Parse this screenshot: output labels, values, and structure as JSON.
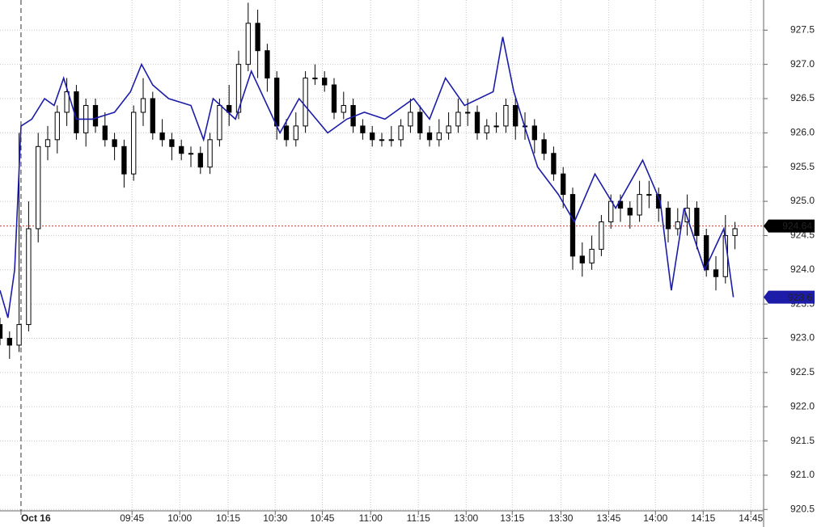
{
  "chart_data": {
    "type": "candlestick",
    "xlim": [
      0,
      240
    ],
    "ylim": [
      920.48,
      927.94
    ],
    "xticks": [
      {
        "value": 6.6,
        "label": "Oct 16"
      },
      {
        "value": 41.5,
        "label": "09:45"
      },
      {
        "value": 56.5,
        "label": "10:00"
      },
      {
        "value": 71.7,
        "label": "10:15"
      },
      {
        "value": 86.5,
        "label": "10:30"
      },
      {
        "value": 101.3,
        "label": "10:45"
      },
      {
        "value": 116.5,
        "label": "11:00"
      },
      {
        "value": 131.5,
        "label": "11:15"
      },
      {
        "value": 146.5,
        "label": "13:00"
      },
      {
        "value": 161,
        "label": "13:15"
      },
      {
        "value": 176.3,
        "label": "13:30"
      },
      {
        "value": 191.3,
        "label": "13:45"
      },
      {
        "value": 206,
        "label": "14:00"
      },
      {
        "value": 221,
        "label": "14:15"
      },
      {
        "value": 236,
        "label": "14:45"
      }
    ],
    "yticks": [
      {
        "value": 920.5,
        "label": "920.5"
      },
      {
        "value": 921,
        "label": "921.0"
      },
      {
        "value": 921.5,
        "label": "921.5"
      },
      {
        "value": 922,
        "label": "922.0"
      },
      {
        "value": 922.5,
        "label": "922.5"
      },
      {
        "value": 923,
        "label": "923.0"
      },
      {
        "value": 923.5,
        "label": "923.5"
      },
      {
        "value": 924,
        "label": "924.0"
      },
      {
        "value": 924.5,
        "label": "924.5"
      },
      {
        "value": 925,
        "label": "925.0"
      },
      {
        "value": 925.5,
        "label": "925.5"
      },
      {
        "value": 926,
        "label": "926.0"
      },
      {
        "value": 926.5,
        "label": "926.5"
      },
      {
        "value": 927,
        "label": "927.0"
      },
      {
        "value": 927.5,
        "label": "927.5"
      }
    ],
    "grid": true,
    "last_candle_price": 924.64,
    "last_line_price": 923.6,
    "series": [
      {
        "type": "candlestick",
        "color": "#000000",
        "x": [
          0,
          3,
          6,
          9,
          12,
          15,
          18,
          21,
          24,
          27,
          30,
          33,
          36,
          39,
          42,
          45,
          48,
          51,
          54,
          57,
          60,
          63,
          66,
          69,
          72,
          75,
          78,
          81,
          84,
          87,
          90,
          93,
          96,
          99,
          102,
          105,
          108,
          111,
          114,
          117,
          120,
          123,
          126,
          129,
          132,
          135,
          138,
          141,
          144,
          147,
          150,
          153,
          156,
          159,
          162,
          165,
          168,
          171,
          174,
          177,
          180,
          183,
          186,
          189,
          192,
          195,
          198,
          201,
          204,
          207,
          210,
          213,
          216,
          219,
          222,
          225,
          228,
          231
        ],
        "open": [
          923.2,
          923.0,
          922.9,
          923.2,
          924.6,
          925.8,
          925.9,
          926.3,
          926.6,
          926.0,
          926.4,
          926.1,
          925.9,
          925.8,
          925.4,
          926.3,
          926.5,
          926.0,
          925.9,
          925.8,
          925.7,
          925.7,
          925.5,
          925.9,
          926.4,
          926.3,
          927.0,
          927.6,
          927.2,
          926.8,
          926.1,
          925.9,
          926.1,
          926.8,
          926.8,
          926.7,
          926.3,
          926.4,
          926.1,
          926.0,
          925.9,
          925.9,
          925.9,
          926.1,
          926.3,
          926.0,
          925.9,
          926.0,
          926.1,
          926.3,
          926.3,
          926.0,
          926.1,
          926.1,
          926.4,
          926.1,
          926.1,
          925.9,
          925.7,
          925.4,
          925.1,
          924.2,
          924.1,
          924.3,
          924.7,
          925.0,
          924.9,
          924.8,
          925.1,
          925.1,
          924.9,
          924.6,
          924.7,
          924.9,
          924.5,
          924.0,
          923.9,
          924.5
        ],
        "high": [
          923.3,
          923.1,
          926.0,
          925.0,
          926.0,
          926.1,
          926.4,
          926.8,
          926.7,
          926.5,
          926.5,
          926.3,
          926.0,
          925.9,
          926.4,
          926.8,
          926.6,
          926.2,
          926.0,
          925.9,
          925.8,
          925.8,
          926.0,
          926.5,
          926.7,
          927.2,
          927.9,
          927.8,
          927.3,
          926.9,
          926.2,
          926.3,
          926.9,
          927.0,
          926.9,
          926.8,
          926.6,
          926.5,
          926.2,
          926.1,
          926.0,
          926.1,
          926.2,
          926.5,
          926.4,
          926.1,
          926.2,
          926.3,
          926.5,
          926.5,
          926.4,
          926.2,
          926.3,
          926.5,
          926.5,
          926.3,
          926.2,
          926.0,
          925.8,
          925.5,
          925.2,
          924.4,
          924.5,
          924.8,
          925.1,
          925.1,
          925.0,
          925.3,
          925.3,
          925.2,
          925.0,
          924.9,
          925.1,
          925.0,
          924.6,
          924.2,
          924.8,
          924.7
        ],
        "low": [
          922.9,
          922.7,
          922.8,
          923.1,
          924.4,
          925.6,
          925.7,
          926.1,
          925.9,
          925.8,
          926.0,
          925.8,
          925.6,
          925.2,
          925.3,
          926.1,
          925.9,
          925.8,
          925.6,
          925.6,
          925.5,
          925.4,
          925.4,
          925.8,
          926.1,
          926.2,
          926.9,
          926.8,
          926.6,
          925.9,
          925.8,
          925.8,
          926.0,
          926.7,
          926.6,
          926.2,
          926.2,
          926.0,
          925.9,
          925.8,
          925.8,
          925.8,
          925.8,
          926.0,
          925.9,
          925.8,
          925.8,
          925.9,
          926.0,
          926.1,
          925.9,
          925.9,
          926.0,
          926.0,
          925.9,
          925.9,
          925.7,
          925.6,
          925.3,
          924.9,
          924.0,
          923.9,
          924.0,
          924.2,
          924.6,
          924.7,
          924.6,
          924.7,
          924.9,
          924.7,
          924.4,
          924.5,
          924.5,
          924.3,
          923.9,
          923.7,
          923.8,
          924.3
        ],
        "close": [
          923.0,
          922.9,
          923.2,
          924.6,
          925.8,
          925.9,
          926.3,
          926.6,
          926.0,
          926.4,
          926.1,
          925.9,
          925.8,
          925.4,
          926.3,
          926.5,
          926.0,
          925.9,
          925.8,
          925.7,
          925.7,
          925.5,
          925.9,
          926.4,
          926.3,
          927.0,
          927.6,
          927.2,
          926.8,
          926.1,
          925.9,
          926.1,
          926.8,
          926.8,
          926.7,
          926.3,
          926.4,
          926.1,
          926.0,
          925.9,
          925.9,
          925.9,
          926.1,
          926.3,
          926.0,
          925.9,
          926.0,
          926.1,
          926.3,
          926.3,
          926.0,
          926.1,
          926.1,
          926.4,
          926.1,
          926.1,
          925.9,
          925.7,
          925.4,
          925.1,
          924.2,
          924.1,
          924.3,
          924.7,
          925.0,
          924.9,
          924.8,
          925.1,
          925.1,
          924.9,
          924.6,
          924.7,
          924.9,
          924.5,
          924.0,
          923.9,
          924.5,
          924.6
        ]
      },
      {
        "type": "line",
        "color": "#1c1ca8",
        "x": [
          0,
          2.5,
          4.6,
          6.6,
          10,
          14,
          17,
          20,
          24,
          29,
          36,
          41,
          44.5,
          48,
          53,
          60,
          64,
          67,
          74,
          79,
          84,
          88,
          94,
          103,
          109,
          114.5,
          121,
          130,
          135,
          140,
          146,
          155,
          158,
          161.5,
          165.5,
          169,
          175.5,
          180.5,
          187,
          193.5,
          202,
          207.5,
          211,
          215,
          221.5,
          227.5,
          230.5
        ],
        "values": [
          923.7,
          923.3,
          924.0,
          926.1,
          926.2,
          926.5,
          926.4,
          926.8,
          926.2,
          926.2,
          926.3,
          926.6,
          927.0,
          926.7,
          926.5,
          926.4,
          925.9,
          926.5,
          926.2,
          926.9,
          926.4,
          926.0,
          926.5,
          926.0,
          926.2,
          926.3,
          926.2,
          926.5,
          926.2,
          926.8,
          926.4,
          926.6,
          927.4,
          926.6,
          926.0,
          925.5,
          925.1,
          924.7,
          925.4,
          924.9,
          925.6,
          925.0,
          923.7,
          924.9,
          924.0,
          924.6,
          923.6
        ]
      }
    ]
  }
}
